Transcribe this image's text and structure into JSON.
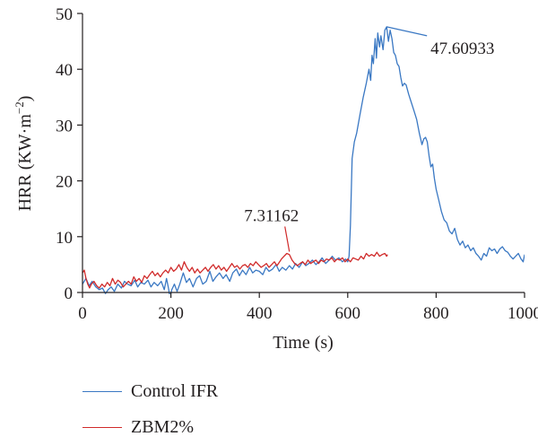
{
  "chart_data": {
    "type": "line",
    "xlabel": "Time (s)",
    "ylabel_prefix": "HRR (KW·m",
    "ylabel_sup": "−2",
    "ylabel_suffix": ")",
    "xlim": [
      0,
      1000
    ],
    "ylim": [
      0,
      50
    ],
    "xticks": [
      0,
      200,
      400,
      600,
      800,
      1000
    ],
    "yticks": [
      0,
      10,
      20,
      30,
      40,
      50
    ],
    "grid": false,
    "legend_position": "bottom",
    "series": [
      {
        "name": "Control IFR",
        "color": "#3a78c3",
        "points": [
          [
            0,
            1.5
          ],
          [
            8,
            2.5
          ],
          [
            15,
            1.2
          ],
          [
            22,
            2.0
          ],
          [
            30,
            1.0
          ],
          [
            38,
            0.5
          ],
          [
            45,
            0.8
          ],
          [
            52,
            -0.2
          ],
          [
            58,
            0.5
          ],
          [
            65,
            1.0
          ],
          [
            72,
            0.2
          ],
          [
            80,
            1.5
          ],
          [
            88,
            0.8
          ],
          [
            95,
            2.0
          ],
          [
            102,
            1.5
          ],
          [
            110,
            1.2
          ],
          [
            118,
            2.2
          ],
          [
            125,
            1.0
          ],
          [
            132,
            1.8
          ],
          [
            140,
            1.5
          ],
          [
            148,
            2.2
          ],
          [
            155,
            1.0
          ],
          [
            162,
            1.8
          ],
          [
            170,
            1.2
          ],
          [
            178,
            2.0
          ],
          [
            185,
            0.5
          ],
          [
            190,
            2.5
          ],
          [
            194,
            1.0
          ],
          [
            198,
            -0.8
          ],
          [
            202,
            0.5
          ],
          [
            208,
            1.5
          ],
          [
            214,
            0.2
          ],
          [
            220,
            1.5
          ],
          [
            228,
            3.5
          ],
          [
            235,
            1.8
          ],
          [
            242,
            2.5
          ],
          [
            250,
            1.0
          ],
          [
            258,
            2.5
          ],
          [
            265,
            3.0
          ],
          [
            272,
            1.5
          ],
          [
            280,
            2.0
          ],
          [
            288,
            3.8
          ],
          [
            295,
            2.0
          ],
          [
            302,
            2.8
          ],
          [
            310,
            3.5
          ],
          [
            318,
            2.5
          ],
          [
            325,
            3.2
          ],
          [
            333,
            2.0
          ],
          [
            340,
            3.5
          ],
          [
            348,
            4.2
          ],
          [
            355,
            3.0
          ],
          [
            362,
            4.0
          ],
          [
            370,
            3.2
          ],
          [
            378,
            4.5
          ],
          [
            385,
            3.5
          ],
          [
            392,
            4.0
          ],
          [
            400,
            3.8
          ],
          [
            408,
            3.2
          ],
          [
            415,
            4.5
          ],
          [
            422,
            3.8
          ],
          [
            430,
            4.2
          ],
          [
            438,
            5.0
          ],
          [
            445,
            3.8
          ],
          [
            452,
            4.5
          ],
          [
            460,
            4.0
          ],
          [
            468,
            4.8
          ],
          [
            475,
            4.2
          ],
          [
            482,
            5.2
          ],
          [
            490,
            4.5
          ],
          [
            498,
            5.5
          ],
          [
            505,
            4.8
          ],
          [
            512,
            5.2
          ],
          [
            520,
            5.8
          ],
          [
            528,
            5.0
          ],
          [
            535,
            5.5
          ],
          [
            542,
            6.2
          ],
          [
            550,
            5.2
          ],
          [
            558,
            5.8
          ],
          [
            565,
            6.5
          ],
          [
            572,
            5.8
          ],
          [
            580,
            6.2
          ],
          [
            588,
            5.5
          ],
          [
            595,
            6.0
          ],
          [
            600,
            5.5
          ],
          [
            603,
            6.5
          ],
          [
            606,
            12.0
          ],
          [
            610,
            24.0
          ],
          [
            615,
            27.0
          ],
          [
            620,
            28.5
          ],
          [
            628,
            32.0
          ],
          [
            635,
            35.0
          ],
          [
            642,
            37.5
          ],
          [
            648,
            40.0
          ],
          [
            652,
            38.0
          ],
          [
            655,
            42.5
          ],
          [
            658,
            41.0
          ],
          [
            662,
            45.5
          ],
          [
            665,
            42.0
          ],
          [
            668,
            46.5
          ],
          [
            672,
            44.0
          ],
          [
            675,
            46.0
          ],
          [
            680,
            43.5
          ],
          [
            684,
            47.0
          ],
          [
            688,
            47.6
          ],
          [
            692,
            45.0
          ],
          [
            696,
            47.0
          ],
          [
            700,
            45.5
          ],
          [
            704,
            43.0
          ],
          [
            708,
            42.5
          ],
          [
            712,
            41.0
          ],
          [
            716,
            40.5
          ],
          [
            720,
            38.5
          ],
          [
            724,
            37.0
          ],
          [
            728,
            37.5
          ],
          [
            732,
            37.2
          ],
          [
            738,
            35.5
          ],
          [
            744,
            34.0
          ],
          [
            750,
            32.5
          ],
          [
            756,
            31.0
          ],
          [
            762,
            28.5
          ],
          [
            768,
            26.5
          ],
          [
            772,
            27.5
          ],
          [
            776,
            27.8
          ],
          [
            780,
            27.0
          ],
          [
            784,
            24.5
          ],
          [
            788,
            22.5
          ],
          [
            792,
            23.0
          ],
          [
            796,
            20.5
          ],
          [
            800,
            18.5
          ],
          [
            806,
            16.5
          ],
          [
            812,
            14.5
          ],
          [
            818,
            13.0
          ],
          [
            824,
            12.5
          ],
          [
            830,
            11.0
          ],
          [
            836,
            10.5
          ],
          [
            842,
            11.5
          ],
          [
            848,
            9.5
          ],
          [
            854,
            8.5
          ],
          [
            860,
            9.2
          ],
          [
            866,
            8.0
          ],
          [
            872,
            8.5
          ],
          [
            878,
            7.5
          ],
          [
            884,
            8.0
          ],
          [
            890,
            7.0
          ],
          [
            896,
            6.5
          ],
          [
            902,
            5.8
          ],
          [
            908,
            7.0
          ],
          [
            914,
            6.5
          ],
          [
            920,
            8.0
          ],
          [
            926,
            7.5
          ],
          [
            932,
            7.8
          ],
          [
            938,
            7.0
          ],
          [
            944,
            7.8
          ],
          [
            950,
            8.2
          ],
          [
            956,
            7.5
          ],
          [
            962,
            7.2
          ],
          [
            968,
            6.5
          ],
          [
            974,
            6.0
          ],
          [
            980,
            6.5
          ],
          [
            986,
            7.0
          ],
          [
            992,
            6.0
          ],
          [
            997,
            5.5
          ],
          [
            1000,
            6.8
          ]
        ]
      },
      {
        "name": "ZBM2%",
        "color": "#d02a2a",
        "points": [
          [
            0,
            3.5
          ],
          [
            4,
            4.0
          ],
          [
            8,
            2.5
          ],
          [
            12,
            1.5
          ],
          [
            16,
            0.8
          ],
          [
            20,
            1.5
          ],
          [
            26,
            2.0
          ],
          [
            32,
            1.2
          ],
          [
            38,
            0.8
          ],
          [
            44,
            1.5
          ],
          [
            50,
            1.0
          ],
          [
            56,
            1.8
          ],
          [
            62,
            1.2
          ],
          [
            68,
            2.5
          ],
          [
            74,
            1.5
          ],
          [
            80,
            2.2
          ],
          [
            86,
            1.8
          ],
          [
            92,
            1.0
          ],
          [
            98,
            1.5
          ],
          [
            104,
            2.0
          ],
          [
            110,
            1.5
          ],
          [
            116,
            2.8
          ],
          [
            122,
            2.0
          ],
          [
            128,
            2.5
          ],
          [
            134,
            1.8
          ],
          [
            140,
            3.0
          ],
          [
            146,
            2.5
          ],
          [
            152,
            3.2
          ],
          [
            158,
            3.8
          ],
          [
            164,
            3.0
          ],
          [
            170,
            3.5
          ],
          [
            176,
            2.8
          ],
          [
            182,
            3.5
          ],
          [
            188,
            4.0
          ],
          [
            194,
            3.5
          ],
          [
            200,
            4.5
          ],
          [
            206,
            3.8
          ],
          [
            212,
            4.2
          ],
          [
            218,
            5.0
          ],
          [
            224,
            4.0
          ],
          [
            230,
            5.5
          ],
          [
            236,
            4.5
          ],
          [
            242,
            3.8
          ],
          [
            248,
            4.5
          ],
          [
            254,
            3.5
          ],
          [
            260,
            4.2
          ],
          [
            266,
            3.5
          ],
          [
            272,
            4.0
          ],
          [
            278,
            4.5
          ],
          [
            284,
            3.8
          ],
          [
            290,
            4.5
          ],
          [
            296,
            5.0
          ],
          [
            302,
            4.2
          ],
          [
            308,
            4.8
          ],
          [
            314,
            4.0
          ],
          [
            320,
            4.5
          ],
          [
            326,
            3.8
          ],
          [
            332,
            4.5
          ],
          [
            338,
            5.2
          ],
          [
            344,
            4.5
          ],
          [
            350,
            4.8
          ],
          [
            356,
            4.2
          ],
          [
            362,
            4.8
          ],
          [
            368,
            5.0
          ],
          [
            374,
            4.5
          ],
          [
            380,
            5.2
          ],
          [
            386,
            4.8
          ],
          [
            392,
            5.5
          ],
          [
            398,
            5.0
          ],
          [
            404,
            4.5
          ],
          [
            410,
            4.8
          ],
          [
            416,
            5.2
          ],
          [
            422,
            4.5
          ],
          [
            428,
            5.0
          ],
          [
            434,
            5.5
          ],
          [
            440,
            4.8
          ],
          [
            446,
            5.5
          ],
          [
            450,
            6.0
          ],
          [
            456,
            6.5
          ],
          [
            462,
            7.0
          ],
          [
            468,
            6.8
          ],
          [
            474,
            5.8
          ],
          [
            480,
            5.2
          ],
          [
            486,
            4.8
          ],
          [
            492,
            5.2
          ],
          [
            498,
            5.5
          ],
          [
            504,
            5.0
          ],
          [
            510,
            5.8
          ],
          [
            516,
            5.2
          ],
          [
            522,
            5.5
          ],
          [
            528,
            5.8
          ],
          [
            534,
            5.2
          ],
          [
            540,
            5.8
          ],
          [
            546,
            5.5
          ],
          [
            552,
            6.0
          ],
          [
            558,
            5.8
          ],
          [
            564,
            6.2
          ],
          [
            570,
            5.5
          ],
          [
            576,
            6.0
          ],
          [
            582,
            5.8
          ],
          [
            588,
            6.2
          ],
          [
            594,
            5.5
          ],
          [
            600,
            6.0
          ],
          [
            606,
            5.5
          ],
          [
            612,
            6.2
          ],
          [
            618,
            6.0
          ],
          [
            624,
            5.8
          ],
          [
            630,
            6.5
          ],
          [
            636,
            6.0
          ],
          [
            642,
            7.0
          ],
          [
            648,
            6.5
          ],
          [
            654,
            6.8
          ],
          [
            660,
            6.5
          ],
          [
            666,
            7.2
          ],
          [
            672,
            6.5
          ],
          [
            678,
            6.8
          ],
          [
            684,
            7.0
          ],
          [
            688,
            6.5
          ],
          [
            690,
            6.8
          ]
        ]
      }
    ],
    "annotations": [
      {
        "text": "47.60933",
        "x": 688,
        "y": 47.60933,
        "series": "Control IFR"
      },
      {
        "text": "7.31162",
        "x": 468,
        "y": 7.31162,
        "series": "ZBM2%"
      }
    ]
  }
}
